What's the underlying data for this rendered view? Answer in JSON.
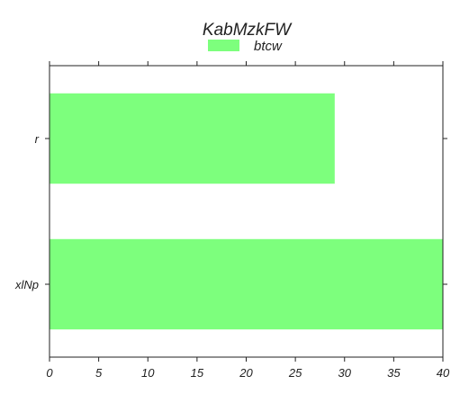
{
  "chart_data": {
    "type": "bar",
    "orientation": "horizontal",
    "title": "KabMzkFW",
    "categories": [
      "r",
      "xlNp"
    ],
    "series": [
      {
        "name": "btcw",
        "values": [
          29,
          40
        ],
        "color": "#7dff7d"
      }
    ],
    "xlim": [
      0,
      40
    ],
    "x_ticks": [
      0,
      5,
      10,
      15,
      20,
      25,
      30,
      35,
      40
    ],
    "grid": false,
    "legend_position": "top-center"
  }
}
